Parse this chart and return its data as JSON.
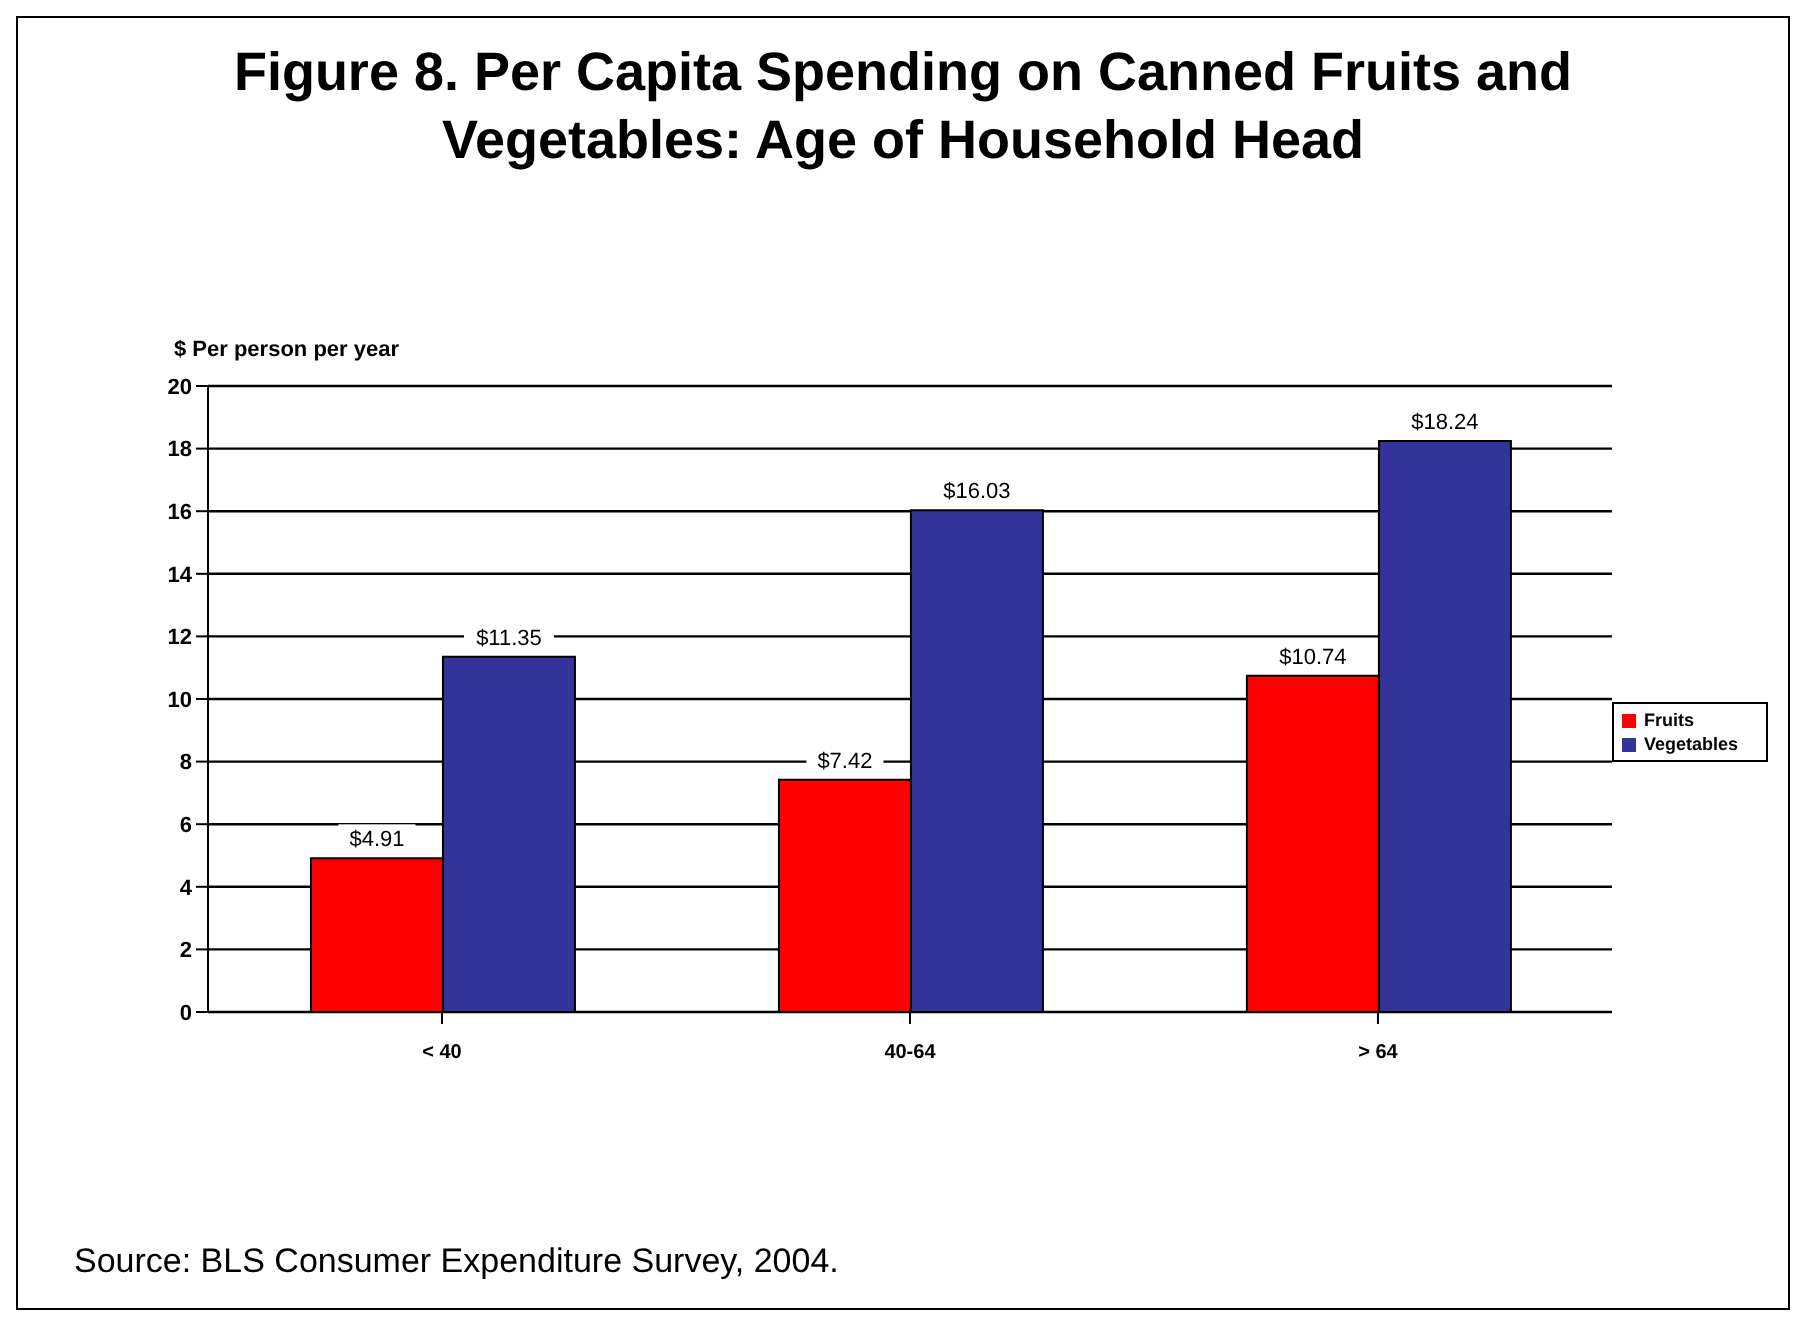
{
  "chart_data": {
    "type": "bar",
    "title": "Figure 8.  Per Capita Spending on Canned Fruits and Vegetables: Age of Household Head",
    "ylabel": "$ Per person per year",
    "categories": [
      "< 40",
      "40-64",
      "> 64"
    ],
    "series": [
      {
        "name": "Fruits",
        "color": "#ff0000",
        "values": [
          4.91,
          7.42,
          10.74
        ],
        "value_labels": [
          "$4.91",
          "$7.42",
          "$10.74"
        ]
      },
      {
        "name": "Vegetables",
        "color": "#333399",
        "values": [
          11.35,
          16.03,
          18.24
        ],
        "value_labels": [
          "$11.35",
          "$16.03",
          "$18.24"
        ]
      }
    ],
    "ylim": [
      0,
      20
    ],
    "yticks": [
      0,
      2,
      4,
      6,
      8,
      10,
      12,
      14,
      16,
      18,
      20
    ],
    "grid": "y",
    "legend": "right",
    "annotations": [
      "Source: BLS Consumer Expenditure Survey, 2004."
    ]
  }
}
